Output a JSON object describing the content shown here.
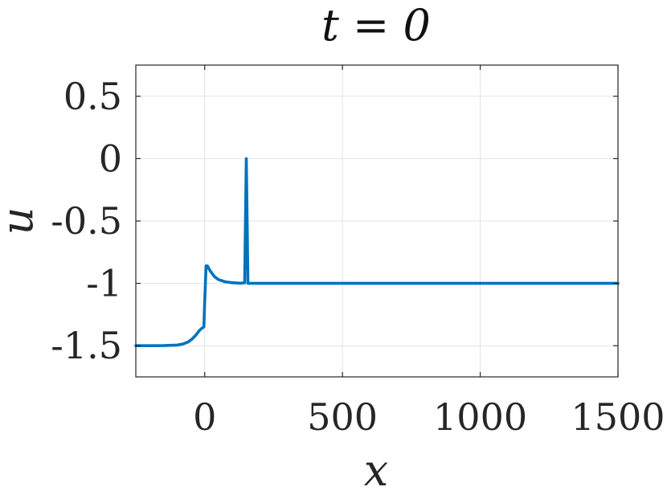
{
  "chart_data": {
    "type": "line",
    "title": "t = 0",
    "xlabel": "x",
    "ylabel": "u",
    "xlim": [
      -250,
      1500
    ],
    "ylim": [
      -1.75,
      0.75
    ],
    "xticks": [
      0,
      500,
      1000,
      1500
    ],
    "xtick_labels": [
      "0",
      "500",
      "1000",
      "1500"
    ],
    "yticks": [
      0.5,
      0,
      -0.5,
      -1,
      -1.5
    ],
    "ytick_labels": [
      "0.5",
      "0",
      "-0.5",
      "-1",
      "-1.5"
    ],
    "grid": true,
    "legend": "none",
    "series": [
      {
        "color": "#0072BD",
        "x": [
          -250,
          -200,
          -150,
          -100,
          -80,
          -60,
          -45,
          -30,
          -20,
          -10,
          -3,
          0,
          5,
          10,
          20,
          35,
          50,
          75,
          100,
          130,
          145,
          148,
          151,
          154,
          157,
          165,
          200,
          300,
          500,
          800,
          1000,
          1200,
          1500
        ],
        "y": [
          -1.5,
          -1.5,
          -1.499,
          -1.495,
          -1.487,
          -1.47,
          -1.445,
          -1.41,
          -1.38,
          -1.36,
          -1.35,
          -1.15,
          -0.86,
          -0.86,
          -0.9,
          -0.945,
          -0.97,
          -0.988,
          -0.995,
          -0.999,
          -0.996,
          -0.5,
          0.0,
          -0.5,
          -1.0,
          -1.0,
          -1.0,
          -1.0,
          -1.0,
          -1.0,
          -1.0,
          -1.0,
          -1.0
        ]
      }
    ]
  }
}
